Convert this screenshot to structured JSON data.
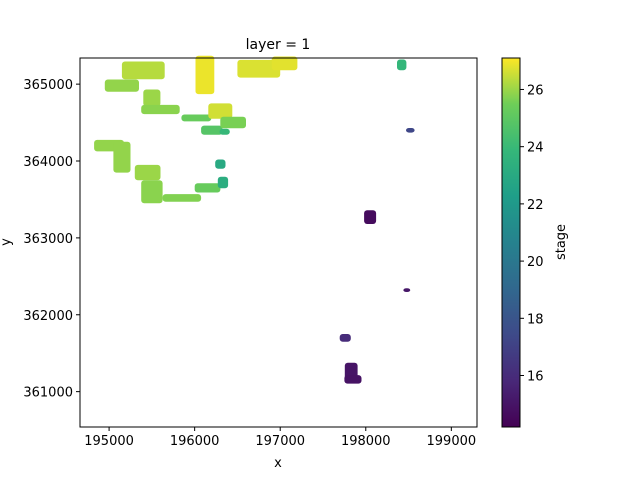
{
  "chart_data": {
    "type": "heatmap",
    "title": "layer = 1",
    "xlabel": "x",
    "ylabel": "y",
    "xlim": [
      194660,
      199300
    ],
    "ylim": [
      360540,
      365340
    ],
    "xticks": [
      195000,
      196000,
      197000,
      198000,
      199000
    ],
    "yticks": [
      361000,
      362000,
      363000,
      364000,
      365000
    ],
    "colorbar": {
      "label": "stage",
      "range": [
        14.2,
        27.1
      ],
      "ticks": [
        16,
        18,
        20,
        22,
        24,
        26
      ],
      "colormap": "viridis"
    },
    "clusters": [
      {
        "x": 195150,
        "y": 364980,
        "w": 400,
        "h": 160,
        "value": 25.9
      },
      {
        "x": 195400,
        "y": 365180,
        "w": 500,
        "h": 230,
        "value": 26.3
      },
      {
        "x": 195500,
        "y": 364820,
        "w": 200,
        "h": 220,
        "value": 26.0
      },
      {
        "x": 195600,
        "y": 364670,
        "w": 450,
        "h": 120,
        "value": 25.8
      },
      {
        "x": 196020,
        "y": 364560,
        "w": 350,
        "h": 90,
        "value": 25.3
      },
      {
        "x": 196120,
        "y": 365120,
        "w": 220,
        "h": 500,
        "value": 26.9
      },
      {
        "x": 196300,
        "y": 364650,
        "w": 280,
        "h": 200,
        "value": 26.6
      },
      {
        "x": 196200,
        "y": 364400,
        "w": 250,
        "h": 120,
        "value": 24.8
      },
      {
        "x": 196350,
        "y": 364380,
        "w": 120,
        "h": 80,
        "value": 23.9
      },
      {
        "x": 196450,
        "y": 364500,
        "w": 300,
        "h": 150,
        "value": 25.6
      },
      {
        "x": 196750,
        "y": 365200,
        "w": 500,
        "h": 230,
        "value": 26.7
      },
      {
        "x": 197050,
        "y": 365270,
        "w": 300,
        "h": 180,
        "value": 26.8
      },
      {
        "x": 195000,
        "y": 364200,
        "w": 350,
        "h": 150,
        "value": 25.9
      },
      {
        "x": 195150,
        "y": 364050,
        "w": 200,
        "h": 400,
        "value": 25.9
      },
      {
        "x": 195450,
        "y": 363850,
        "w": 300,
        "h": 200,
        "value": 26.0
      },
      {
        "x": 195500,
        "y": 363600,
        "w": 250,
        "h": 300,
        "value": 25.8
      },
      {
        "x": 195850,
        "y": 363520,
        "w": 450,
        "h": 100,
        "value": 25.7
      },
      {
        "x": 196150,
        "y": 363650,
        "w": 300,
        "h": 120,
        "value": 25.3
      },
      {
        "x": 196330,
        "y": 363720,
        "w": 120,
        "h": 150,
        "value": 23.2
      },
      {
        "x": 196300,
        "y": 363960,
        "w": 120,
        "h": 120,
        "value": 23.0
      },
      {
        "x": 198420,
        "y": 365250,
        "w": 110,
        "h": 140,
        "value": 23.8
      },
      {
        "x": 198520,
        "y": 364400,
        "w": 100,
        "h": 60,
        "value": 17.3
      },
      {
        "x": 198050,
        "y": 363270,
        "w": 140,
        "h": 180,
        "value": 14.6
      },
      {
        "x": 198480,
        "y": 362320,
        "w": 80,
        "h": 50,
        "value": 15.1
      },
      {
        "x": 197760,
        "y": 361700,
        "w": 130,
        "h": 100,
        "value": 16.0
      },
      {
        "x": 197830,
        "y": 361250,
        "w": 150,
        "h": 250,
        "value": 15.0
      },
      {
        "x": 197850,
        "y": 361160,
        "w": 200,
        "h": 110,
        "value": 14.9
      }
    ]
  }
}
